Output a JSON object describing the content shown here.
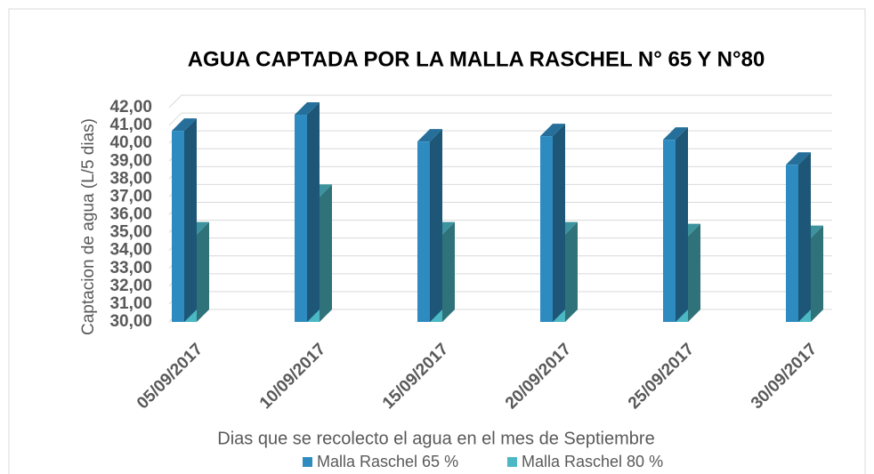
{
  "chart_data": {
    "type": "bar3d",
    "title": "AGUA CAPTADA POR LA MALLA RASCHEL N° 65 Y N°80",
    "x_label": "Dias que se recolecto el agua en el mes de Septiembre",
    "y_label": "Captacion de agua (L/5 dias)",
    "categories": [
      "05/09/2017",
      "10/09/2017",
      "15/09/2017",
      "20/09/2017",
      "25/09/2017",
      "30/09/2017"
    ],
    "series": [
      {
        "name": "Malla Raschel 65 %",
        "color": "#2e8bc0",
        "values": [
          40.7,
          41.6,
          40.1,
          40.4,
          40.2,
          38.8
        ]
      },
      {
        "name": "Malla Raschel 80 %",
        "color": "#4bb8c4",
        "values": [
          34.9,
          37.0,
          34.9,
          34.9,
          34.8,
          34.7
        ]
      }
    ],
    "ylim": [
      30,
      42
    ],
    "yticks": [
      {
        "value": 30,
        "label": "30,00"
      },
      {
        "value": 31,
        "label": "31,00"
      },
      {
        "value": 32,
        "label": "32,00"
      },
      {
        "value": 33,
        "label": "33,00"
      },
      {
        "value": 34,
        "label": "34,00"
      },
      {
        "value": 35,
        "label": "35,00"
      },
      {
        "value": 36,
        "label": "36,00"
      },
      {
        "value": 37,
        "label": "37,00"
      },
      {
        "value": 38,
        "label": "38,00"
      },
      {
        "value": 39,
        "label": "39,00"
      },
      {
        "value": 40,
        "label": "40,00"
      },
      {
        "value": 41,
        "label": "41,00"
      },
      {
        "value": 42,
        "label": "42,00"
      }
    ],
    "grid": true,
    "legend": "bottom"
  }
}
